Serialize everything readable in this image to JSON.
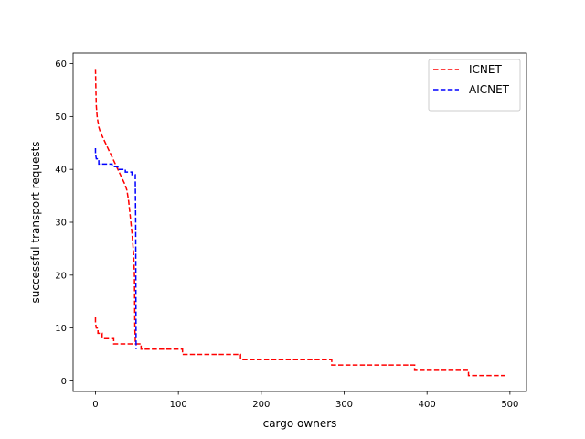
{
  "chart_data": {
    "type": "line",
    "xlabel": "cargo owners",
    "ylabel": "successful transport requests",
    "xlim": [
      -27,
      520
    ],
    "ylim": [
      -2,
      62
    ],
    "xticks": [
      0,
      100,
      200,
      300,
      400,
      500
    ],
    "yticks": [
      0,
      10,
      20,
      30,
      40,
      50,
      60
    ],
    "grid": false,
    "legend_position": "top-right",
    "series": [
      {
        "name": "ICNET",
        "color": "#ff0000",
        "style": "dashed",
        "points": [
          [
            0,
            59
          ],
          [
            0.5,
            55
          ],
          [
            1,
            52
          ],
          [
            2,
            50
          ],
          [
            4,
            48
          ],
          [
            6,
            47
          ],
          [
            9,
            46
          ],
          [
            12,
            45
          ],
          [
            15,
            44
          ],
          [
            18,
            43
          ],
          [
            21,
            42
          ],
          [
            24,
            41
          ],
          [
            27,
            40
          ],
          [
            30,
            39
          ],
          [
            33,
            38
          ],
          [
            36,
            37
          ],
          [
            38,
            36
          ],
          [
            40,
            34
          ],
          [
            42,
            31
          ],
          [
            44,
            28
          ],
          [
            45,
            26
          ],
          [
            46,
            24
          ],
          [
            47,
            20
          ],
          [
            47.5,
            10
          ],
          [
            48,
            8
          ],
          [
            48,
            7
          ],
          [
            55,
            7
          ],
          [
            55,
            6
          ],
          [
            105,
            6
          ],
          [
            105,
            5
          ],
          [
            175,
            5
          ],
          [
            175,
            4
          ],
          [
            285,
            4
          ],
          [
            285,
            3
          ],
          [
            385,
            3
          ],
          [
            385,
            2
          ],
          [
            450,
            2
          ],
          [
            450,
            1
          ],
          [
            494,
            1
          ]
        ]
      },
      {
        "name": "",
        "color": "#ff0000",
        "style": "dashed",
        "points": [
          [
            0,
            12
          ],
          [
            0,
            11
          ],
          [
            1,
            10
          ],
          [
            3,
            10
          ],
          [
            3,
            9
          ],
          [
            8,
            9
          ],
          [
            8,
            8
          ],
          [
            22,
            8
          ],
          [
            22,
            7
          ],
          [
            48,
            7
          ]
        ]
      },
      {
        "name": "AICNET",
        "color": "#0000ff",
        "style": "dashed",
        "points": [
          [
            0,
            44
          ],
          [
            0,
            43
          ],
          [
            1,
            42
          ],
          [
            4,
            42
          ],
          [
            4,
            41
          ],
          [
            20,
            41
          ],
          [
            20,
            40.5
          ],
          [
            27,
            40.5
          ],
          [
            27,
            40
          ],
          [
            36,
            40
          ],
          [
            36,
            39.5
          ],
          [
            44,
            39.5
          ],
          [
            44,
            39
          ],
          [
            48,
            39
          ],
          [
            48,
            38
          ],
          [
            48.5,
            30
          ],
          [
            48.8,
            15
          ],
          [
            49,
            6
          ]
        ]
      }
    ]
  }
}
